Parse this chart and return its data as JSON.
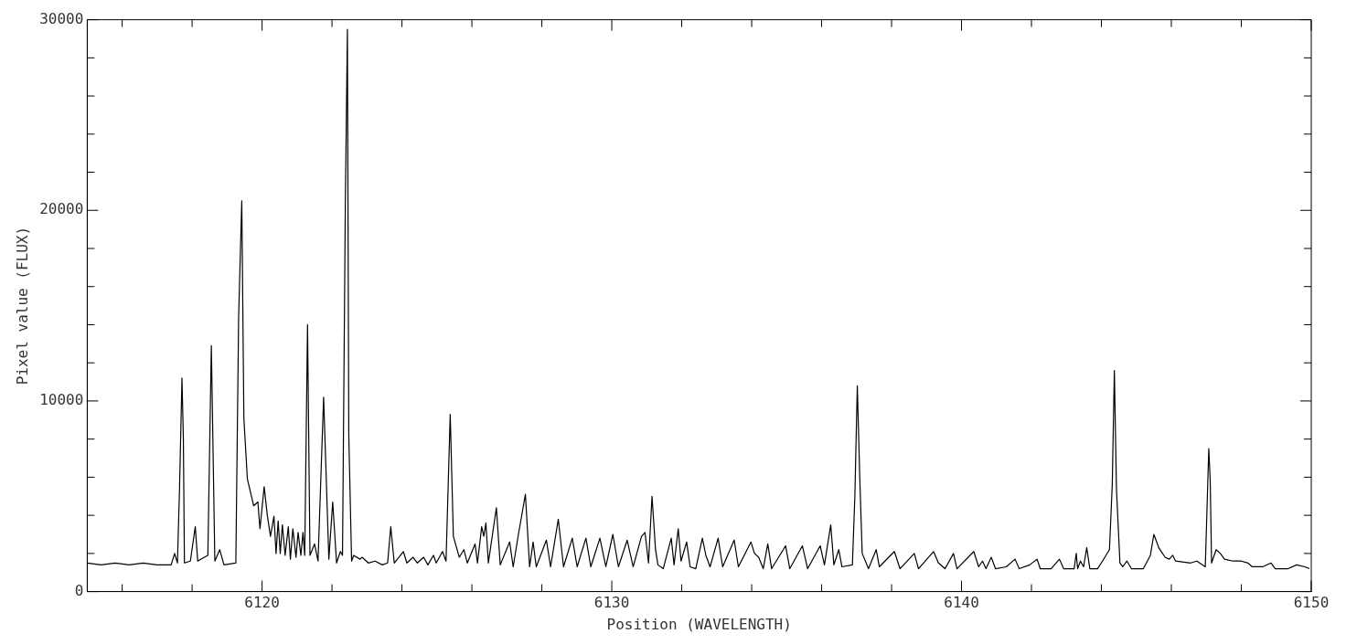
{
  "chart_data": {
    "type": "line",
    "xlabel": "Position (WAVELENGTH)",
    "ylabel": "Pixel value (FLUX)",
    "color": "#000000",
    "marker": "none",
    "line_style": "solid",
    "xlim": [
      6115,
      6150
    ],
    "xticks": [
      {
        "value": 6116,
        "label": null
      },
      {
        "value": 6118,
        "label": null
      },
      6120,
      {
        "value": 6122,
        "label": null
      },
      {
        "value": 6124,
        "label": null
      },
      {
        "value": 6126,
        "label": null
      },
      {
        "value": 6128,
        "label": null
      },
      6130,
      {
        "value": 6132,
        "label": null
      },
      {
        "value": 6134,
        "label": null
      },
      {
        "value": 6136,
        "label": null
      },
      {
        "value": 6138,
        "label": null
      },
      6140,
      {
        "value": 6142,
        "label": null
      },
      {
        "value": 6144,
        "label": null
      },
      {
        "value": 6146,
        "label": null
      },
      {
        "value": 6148,
        "label": null
      },
      6150
    ],
    "ylim": [
      0,
      30000
    ],
    "yticks": [
      0,
      {
        "value": 2000,
        "label": null
      },
      {
        "value": 4000,
        "label": null
      },
      {
        "value": 6000,
        "label": null
      },
      {
        "value": 8000,
        "label": null
      },
      10000,
      {
        "value": 12000,
        "label": null
      },
      {
        "value": 14000,
        "label": null
      },
      {
        "value": 16000,
        "label": null
      },
      {
        "value": 18000,
        "label": null
      },
      20000,
      {
        "value": 22000,
        "label": null
      },
      {
        "value": 24000,
        "label": null
      },
      {
        "value": 26000,
        "label": null
      },
      {
        "value": 28000,
        "label": null
      },
      30000
    ],
    "x": [
      6115.0,
      6115.4,
      6115.8,
      6116.2,
      6116.6,
      6117.0,
      6117.4,
      6117.5,
      6117.58,
      6117.64,
      6117.71,
      6117.75,
      6117.78,
      6117.95,
      6118.09,
      6118.16,
      6118.35,
      6118.45,
      6118.55,
      6118.65,
      6118.79,
      6118.91,
      6119.25,
      6119.33,
      6119.42,
      6119.48,
      6119.58,
      6119.76,
      6119.88,
      6119.94,
      6120.06,
      6120.15,
      6120.24,
      6120.34,
      6120.4,
      6120.46,
      6120.52,
      6120.58,
      6120.66,
      6120.75,
      6120.81,
      6120.88,
      6120.97,
      6121.03,
      6121.11,
      6121.17,
      6121.22,
      6121.3,
      6121.37,
      6121.5,
      6121.6,
      6121.76,
      6121.91,
      6122.02,
      6122.13,
      6122.24,
      6122.3,
      6122.38,
      6122.44,
      6122.48,
      6122.56,
      6122.62,
      6122.8,
      6122.86,
      6123.04,
      6123.23,
      6123.44,
      6123.59,
      6123.68,
      6123.78,
      6124.04,
      6124.14,
      6124.32,
      6124.44,
      6124.62,
      6124.74,
      6124.9,
      6124.98,
      6125.16,
      6125.26,
      6125.38,
      6125.47,
      6125.64,
      6125.77,
      6125.87,
      6126.09,
      6126.16,
      6126.28,
      6126.34,
      6126.4,
      6126.47,
      6126.7,
      6126.81,
      6127.08,
      6127.18,
      6127.33,
      6127.53,
      6127.65,
      6127.75,
      6127.84,
      6128.13,
      6128.25,
      6128.47,
      6128.62,
      6128.87,
      6129.01,
      6129.26,
      6129.4,
      6129.66,
      6129.83,
      6130.03,
      6130.19,
      6130.44,
      6130.61,
      6130.85,
      6130.95,
      6131.05,
      6131.15,
      6131.25,
      6131.32,
      6131.47,
      6131.7,
      6131.78,
      6131.9,
      6131.98,
      6132.14,
      6132.24,
      6132.4,
      6132.59,
      6132.69,
      6132.81,
      6133.04,
      6133.17,
      6133.5,
      6133.62,
      6133.98,
      6134.08,
      6134.2,
      6134.33,
      6134.46,
      6134.57,
      6134.97,
      6135.09,
      6135.45,
      6135.6,
      6135.96,
      6136.08,
      6136.26,
      6136.35,
      6136.49,
      6136.58,
      6136.88,
      6136.95,
      6137.02,
      6137.09,
      6137.16,
      6137.34,
      6137.56,
      6137.65,
      6138.08,
      6138.24,
      6138.65,
      6138.77,
      6139.2,
      6139.34,
      6139.53,
      6139.77,
      6139.87,
      6140.35,
      6140.49,
      6140.6,
      6140.7,
      6140.85,
      6140.97,
      6141.28,
      6141.53,
      6141.65,
      6141.95,
      6142.16,
      6142.25,
      6142.56,
      6142.8,
      6142.92,
      6143.22,
      6143.28,
      6143.32,
      6143.4,
      6143.49,
      6143.58,
      6143.67,
      6143.89,
      6144.03,
      6144.23,
      6144.31,
      6144.37,
      6144.43,
      6144.53,
      6144.61,
      6144.73,
      6144.86,
      6145.2,
      6145.4,
      6145.5,
      6145.64,
      6145.82,
      6145.94,
      6146.04,
      6146.12,
      6146.55,
      6146.73,
      6146.97,
      6147.07,
      6147.11,
      6147.15,
      6147.28,
      6147.4,
      6147.52,
      6147.76,
      6148.0,
      6148.19,
      6148.31,
      6148.61,
      6148.85,
      6148.97,
      6149.34,
      6149.58,
      6149.82,
      6149.95
    ],
    "values": [
      1500,
      1400,
      1500,
      1400,
      1500,
      1400,
      1400,
      2000,
      1500,
      5400,
      11200,
      8000,
      1500,
      1600,
      3400,
      1600,
      1800,
      1900,
      12900,
      1600,
      2200,
      1400,
      1500,
      14400,
      20500,
      9100,
      5900,
      4500,
      4700,
      3300,
      5500,
      4000,
      2900,
      3950,
      2000,
      3700,
      2000,
      3500,
      1900,
      3400,
      1700,
      3300,
      1800,
      3100,
      1900,
      3100,
      1900,
      14000,
      1900,
      2500,
      1600,
      10200,
      1700,
      4700,
      1500,
      2100,
      1900,
      20200,
      29500,
      8200,
      1600,
      1900,
      1700,
      1800,
      1500,
      1600,
      1400,
      1500,
      3400,
      1500,
      2100,
      1500,
      1800,
      1500,
      1800,
      1400,
      1900,
      1500,
      2100,
      1600,
      9300,
      2900,
      1800,
      2200,
      1500,
      2500,
      1500,
      3400,
      2900,
      3600,
      1500,
      4400,
      1400,
      2600,
      1300,
      3000,
      5100,
      1300,
      2600,
      1300,
      2700,
      1300,
      3800,
      1300,
      2800,
      1300,
      2800,
      1300,
      2800,
      1300,
      3000,
      1300,
      2700,
      1300,
      2900,
      3100,
      1500,
      5000,
      2200,
      1400,
      1200,
      2800,
      1400,
      3300,
      1600,
      2600,
      1300,
      1200,
      2800,
      1900,
      1300,
      2800,
      1300,
      2700,
      1300,
      2600,
      2000,
      1800,
      1200,
      2500,
      1200,
      2400,
      1200,
      2400,
      1200,
      2400,
      1400,
      3500,
      1400,
      2200,
      1300,
      1400,
      5000,
      10800,
      6000,
      2000,
      1200,
      2200,
      1300,
      2100,
      1200,
      2000,
      1200,
      2100,
      1500,
      1200,
      2000,
      1200,
      2100,
      1300,
      1600,
      1200,
      1800,
      1200,
      1300,
      1700,
      1200,
      1400,
      1700,
      1200,
      1200,
      1700,
      1200,
      1200,
      2000,
      1200,
      1600,
      1300,
      2300,
      1200,
      1200,
      1600,
      2200,
      5600,
      11600,
      5400,
      1500,
      1300,
      1600,
      1200,
      1200,
      1900,
      3000,
      2300,
      1800,
      1700,
      1900,
      1600,
      1500,
      1600,
      1300,
      7500,
      5900,
      1500,
      2200,
      2000,
      1700,
      1600,
      1600,
      1500,
      1300,
      1300,
      1500,
      1200,
      1200,
      1400,
      1300,
      1200
    ]
  }
}
